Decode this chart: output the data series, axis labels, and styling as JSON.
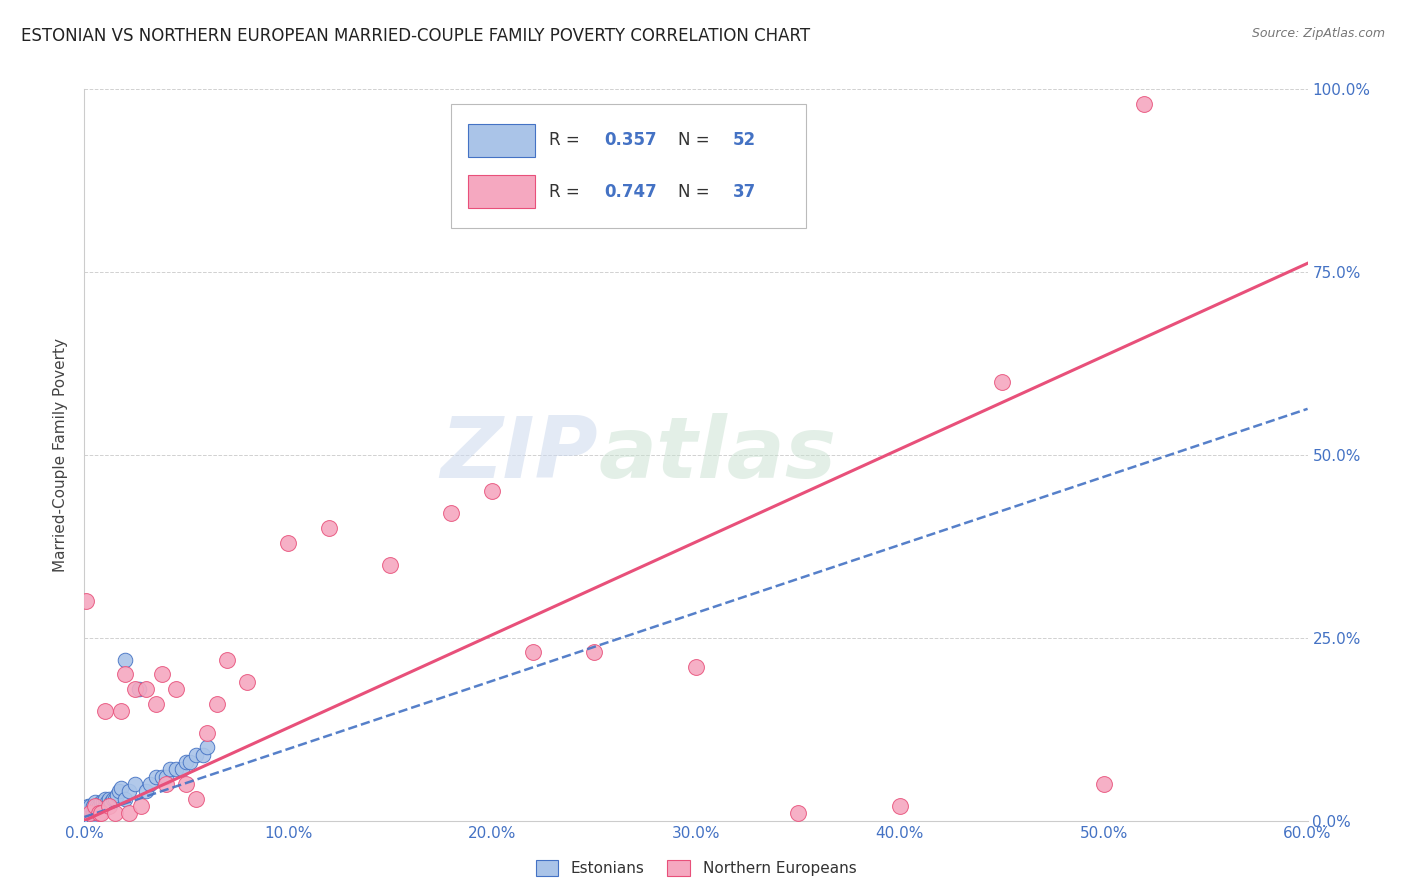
{
  "title": "ESTONIAN VS NORTHERN EUROPEAN MARRIED-COUPLE FAMILY POVERTY CORRELATION CHART",
  "source": "Source: ZipAtlas.com",
  "ylabel": "Married-Couple Family Poverty",
  "xlim": [
    0.0,
    0.6
  ],
  "ylim": [
    0.0,
    1.0
  ],
  "R_est": 0.357,
  "N_est": 52,
  "R_nor": 0.747,
  "N_nor": 37,
  "est_color": "#aac4e8",
  "nor_color": "#f5a8c0",
  "est_line_color": "#4472c4",
  "nor_line_color": "#e8507a",
  "est_line_slope": 0.93,
  "est_line_intercept": 0.005,
  "nor_line_slope": 1.27,
  "nor_line_intercept": 0.0,
  "estonians_x": [
    0.001,
    0.001,
    0.001,
    0.002,
    0.002,
    0.002,
    0.003,
    0.003,
    0.003,
    0.003,
    0.004,
    0.004,
    0.004,
    0.005,
    0.005,
    0.005,
    0.006,
    0.006,
    0.007,
    0.007,
    0.008,
    0.008,
    0.009,
    0.009,
    0.01,
    0.01,
    0.011,
    0.012,
    0.013,
    0.014,
    0.015,
    0.016,
    0.017,
    0.018,
    0.02,
    0.02,
    0.022,
    0.025,
    0.027,
    0.03,
    0.032,
    0.035,
    0.038,
    0.04,
    0.042,
    0.045,
    0.048,
    0.05,
    0.052,
    0.055,
    0.058,
    0.06
  ],
  "estonians_y": [
    0.005,
    0.01,
    0.015,
    0.005,
    0.01,
    0.02,
    0.005,
    0.01,
    0.015,
    0.02,
    0.005,
    0.01,
    0.02,
    0.01,
    0.015,
    0.025,
    0.01,
    0.02,
    0.01,
    0.02,
    0.015,
    0.025,
    0.015,
    0.025,
    0.02,
    0.03,
    0.025,
    0.03,
    0.025,
    0.03,
    0.03,
    0.035,
    0.04,
    0.045,
    0.22,
    0.03,
    0.04,
    0.05,
    0.18,
    0.04,
    0.05,
    0.06,
    0.06,
    0.06,
    0.07,
    0.07,
    0.07,
    0.08,
    0.08,
    0.09,
    0.09,
    0.1
  ],
  "nor_europeans_x": [
    0.001,
    0.003,
    0.005,
    0.007,
    0.008,
    0.01,
    0.012,
    0.015,
    0.018,
    0.02,
    0.022,
    0.025,
    0.028,
    0.03,
    0.035,
    0.038,
    0.04,
    0.045,
    0.05,
    0.055,
    0.06,
    0.065,
    0.07,
    0.08,
    0.1,
    0.12,
    0.15,
    0.18,
    0.2,
    0.22,
    0.25,
    0.3,
    0.35,
    0.4,
    0.45,
    0.5,
    0.52
  ],
  "nor_europeans_y": [
    0.3,
    0.01,
    0.02,
    0.01,
    0.01,
    0.15,
    0.02,
    0.01,
    0.15,
    0.2,
    0.01,
    0.18,
    0.02,
    0.18,
    0.16,
    0.2,
    0.05,
    0.18,
    0.05,
    0.03,
    0.12,
    0.16,
    0.22,
    0.19,
    0.38,
    0.4,
    0.35,
    0.42,
    0.45,
    0.23,
    0.23,
    0.21,
    0.01,
    0.02,
    0.6,
    0.05,
    0.98
  ]
}
